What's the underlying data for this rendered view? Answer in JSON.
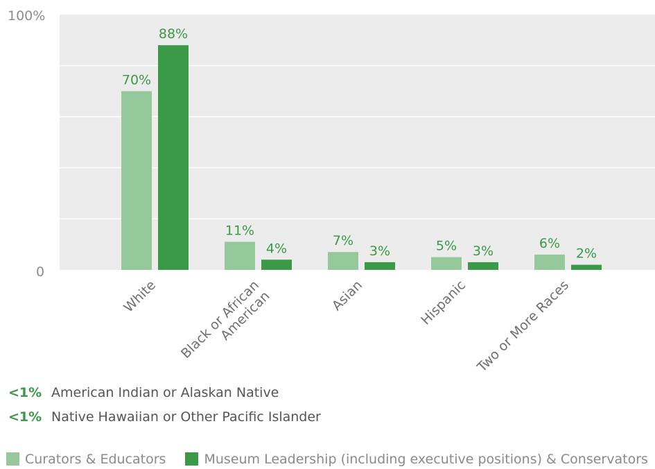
{
  "chart_data": {
    "type": "bar",
    "categories": [
      "White",
      "Black or African American",
      "Asian",
      "Hispanic",
      "Two or More Races"
    ],
    "category_lines": [
      [
        "White"
      ],
      [
        "Black or African",
        "American"
      ],
      [
        "Asian"
      ],
      [
        "Hispanic"
      ],
      [
        "Two or More Races"
      ]
    ],
    "series": [
      {
        "name": "Curators & Educators",
        "values": [
          70,
          11,
          7,
          5,
          6
        ],
        "labels": [
          "70%",
          "11%",
          "7%",
          "5%",
          "6%"
        ],
        "color": "#95c89b"
      },
      {
        "name": "Museum Leadership (including executive positions) & Conservators",
        "values": [
          88,
          4,
          3,
          3,
          2
        ],
        "labels": [
          "88%",
          "4%",
          "3%",
          "3%",
          "2%"
        ],
        "color": "#3a9a47"
      }
    ],
    "ylim": [
      0,
      100
    ],
    "ytick_labels": {
      "top": "100%",
      "bottom": "0"
    },
    "grid": true,
    "legend": "bottom-left",
    "label_color": "#3a9a47",
    "plot_background": "#ececec"
  },
  "notes": [
    {
      "value": "<1%",
      "text": "American Indian or Alaskan Native"
    },
    {
      "value": "<1%",
      "text": "Native Hawaiian or Other Pacific Islander"
    }
  ]
}
